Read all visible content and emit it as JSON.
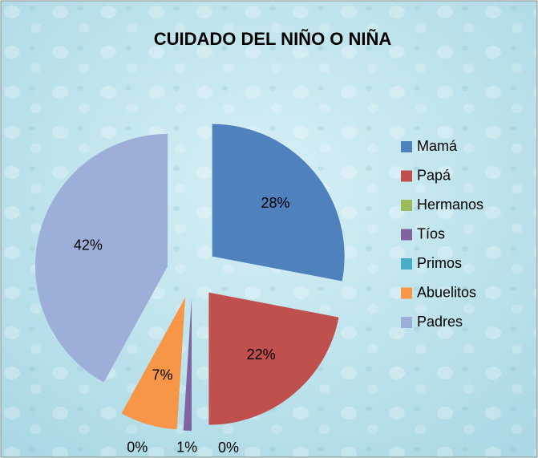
{
  "chart_data": {
    "type": "pie",
    "title": "CUIDADO DEL NIÑO O NIÑA",
    "categories": [
      "Mamá",
      "Papá",
      "Hermanos",
      "Tíos",
      "Primos",
      "Abuelitos",
      "Padres"
    ],
    "values": [
      28,
      22,
      0,
      1,
      0,
      7,
      42
    ],
    "value_labels": [
      "28%",
      "22%",
      "0%",
      "1%",
      "0%",
      "7%",
      "42%"
    ],
    "colors": [
      "#4f81bd",
      "#c0504d",
      "#9bbb59",
      "#8064a2",
      "#4bacc6",
      "#f79646",
      "#9dafd9"
    ],
    "legend": "right"
  }
}
